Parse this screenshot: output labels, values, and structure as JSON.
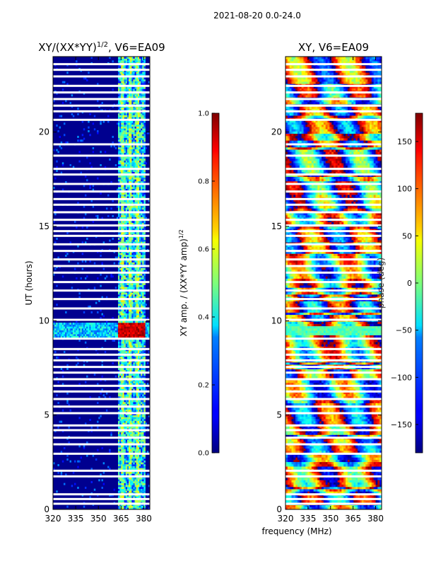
{
  "figure_title": "2021-08-20 0.0-24.0",
  "xlabel_shared": "frequency (MHz)",
  "chart_data": [
    {
      "type": "heatmap",
      "title": "XY/(XX*YY)",
      "title_superscript": "1/2",
      "title_suffix": ", V6=EA09",
      "xlabel": "",
      "ylabel": "UT (hours)",
      "xlim": [
        320,
        384
      ],
      "ylim": [
        0,
        24
      ],
      "xticks": [
        320,
        335,
        350,
        365,
        380
      ],
      "yticks": [
        0,
        5,
        10,
        15,
        20
      ],
      "colorbar": {
        "label": "XY amp. / (XX*YY amp)",
        "label_superscript": "1/2",
        "range": [
          0.0,
          1.0
        ],
        "ticks": [
          "0.0",
          "0.2",
          "0.4",
          "0.6",
          "0.8",
          "1.0"
        ],
        "colormap": "jet"
      },
      "features": {
        "high_freq_band": [
          363,
          381
        ],
        "bright_columns": [
          366,
          371,
          376
        ],
        "strong_rfi_hours": [
          9.1,
          9.9
        ]
      }
    },
    {
      "type": "heatmap",
      "title": "XY, V6=EA09",
      "xlabel": "frequency (MHz)",
      "ylabel": "",
      "xlim": [
        320,
        384
      ],
      "ylim": [
        0,
        24
      ],
      "xticks": [
        320,
        335,
        350,
        365,
        380
      ],
      "yticks": [
        0,
        5,
        10,
        15,
        20
      ],
      "colorbar": {
        "label": "phase (deg)",
        "range": [
          -180,
          180
        ],
        "ticks": [
          "−150",
          "−100",
          "−50",
          "0",
          "50",
          "100",
          "150"
        ],
        "tick_values": [
          -150,
          -100,
          -50,
          0,
          50,
          100,
          150
        ],
        "colormap": "jet"
      }
    }
  ],
  "data_gaps_hours": [
    0.3,
    0.55,
    0.8,
    1.75,
    2.05,
    2.95,
    3.45,
    3.8,
    4.2,
    4.45,
    5.1,
    5.45,
    5.85,
    6.25,
    6.55,
    6.9,
    7.25,
    7.55,
    7.9,
    8.2,
    8.5,
    9.05,
    10.05,
    10.65,
    11.15,
    11.6,
    12.05,
    12.55,
    12.9,
    13.25,
    13.7,
    14.05,
    14.5,
    14.75,
    15.05,
    15.35,
    15.75,
    16.15,
    16.45,
    16.85,
    17.25,
    17.75,
    18.05,
    18.75,
    19.35,
    20.65,
    21.1,
    21.4,
    21.75,
    22.1,
    22.45,
    22.95,
    23.3,
    23.6
  ]
}
